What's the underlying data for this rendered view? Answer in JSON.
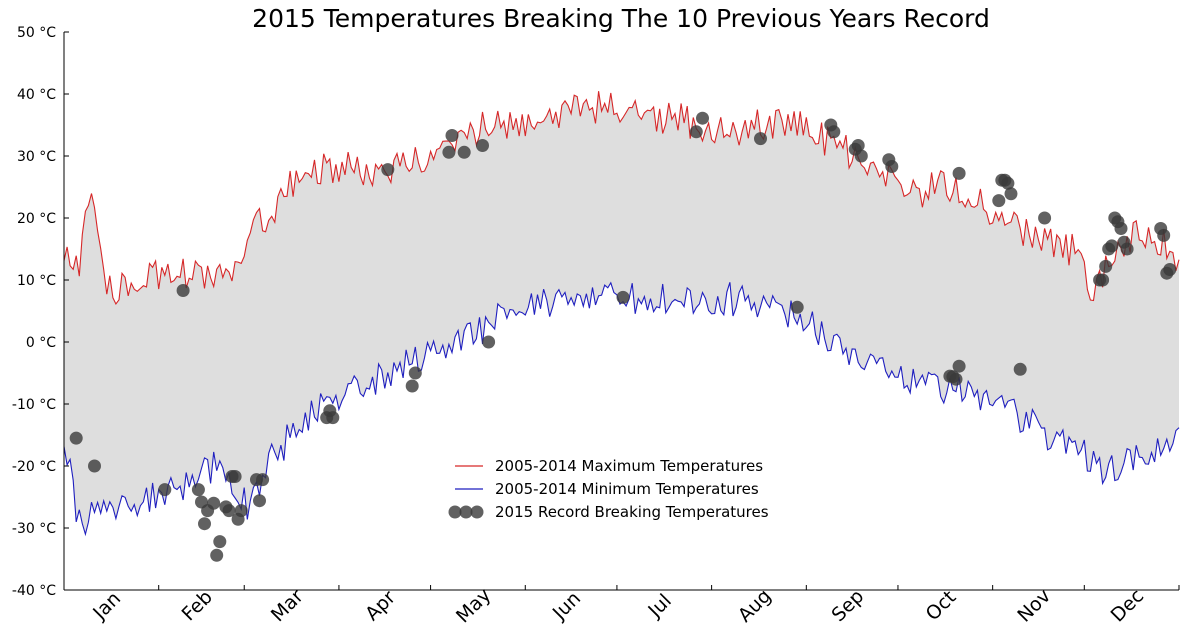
{
  "chart_data": {
    "type": "line",
    "title": "2015 Temperatures Breaking The 10 Previous Years Record",
    "xlabel": "",
    "ylabel": "",
    "xlim": [
      0,
      365
    ],
    "ylim": [
      -40,
      50
    ],
    "y_ticks": [
      {
        "value": -40,
        "label": "-40 °C"
      },
      {
        "value": -30,
        "label": "-30 °C"
      },
      {
        "value": -20,
        "label": "-20 °C"
      },
      {
        "value": -10,
        "label": "-10 °C"
      },
      {
        "value": 0,
        "label": "0 °C"
      },
      {
        "value": 10,
        "label": "10 °C"
      },
      {
        "value": 20,
        "label": "20 °C"
      },
      {
        "value": 30,
        "label": "30 °C"
      },
      {
        "value": 40,
        "label": "40 °C"
      },
      {
        "value": 50,
        "label": "50 °C"
      }
    ],
    "x_month_labels": [
      "Jan",
      "Feb",
      "Mar",
      "Apr",
      "May",
      "Jun",
      "Jul",
      "Aug",
      "Sep",
      "Oct",
      "Nov",
      "Dec"
    ],
    "month_boundaries": [
      0,
      31,
      59,
      90,
      120,
      151,
      181,
      212,
      243,
      273,
      304,
      334,
      365
    ],
    "grid": false,
    "legend_position": "lower-center",
    "fill_between": true,
    "colors": {
      "max_line": "#d62728",
      "min_line": "#1f1fbf",
      "fill": "#dedede",
      "scatter": "#3a3a3a"
    },
    "max_anchors": [
      [
        0,
        15
      ],
      [
        5,
        12
      ],
      [
        8,
        22
      ],
      [
        15,
        8
      ],
      [
        28,
        11
      ],
      [
        40,
        11
      ],
      [
        55,
        11
      ],
      [
        65,
        20
      ],
      [
        80,
        28
      ],
      [
        92,
        28
      ],
      [
        105,
        28
      ],
      [
        115,
        29
      ],
      [
        125,
        32
      ],
      [
        140,
        35
      ],
      [
        155,
        36
      ],
      [
        170,
        38
      ],
      [
        185,
        38
      ],
      [
        200,
        36
      ],
      [
        215,
        34
      ],
      [
        230,
        35
      ],
      [
        240,
        35
      ],
      [
        255,
        31
      ],
      [
        265,
        29
      ],
      [
        275,
        23
      ],
      [
        285,
        25
      ],
      [
        295,
        24
      ],
      [
        305,
        20
      ],
      [
        318,
        17
      ],
      [
        330,
        15
      ],
      [
        337,
        9
      ],
      [
        345,
        15
      ],
      [
        355,
        18
      ],
      [
        365,
        13
      ]
    ],
    "min_anchors": [
      [
        0,
        -17
      ],
      [
        5,
        -29
      ],
      [
        10,
        -27
      ],
      [
        20,
        -26
      ],
      [
        35,
        -24
      ],
      [
        50,
        -20
      ],
      [
        60,
        -26
      ],
      [
        70,
        -17
      ],
      [
        80,
        -12
      ],
      [
        90,
        -9
      ],
      [
        100,
        -6
      ],
      [
        115,
        -3
      ],
      [
        130,
        0
      ],
      [
        145,
        4
      ],
      [
        160,
        6
      ],
      [
        175,
        7
      ],
      [
        190,
        7
      ],
      [
        200,
        7
      ],
      [
        215,
        7
      ],
      [
        230,
        6
      ],
      [
        240,
        4
      ],
      [
        255,
        -1
      ],
      [
        268,
        -3
      ],
      [
        280,
        -6
      ],
      [
        295,
        -8
      ],
      [
        305,
        -10
      ],
      [
        315,
        -13
      ],
      [
        330,
        -17
      ],
      [
        340,
        -21
      ],
      [
        350,
        -19
      ],
      [
        365,
        -15
      ]
    ],
    "series": [
      {
        "name": "2005-2014 Maximum Temperatures",
        "role": "max",
        "style": "line"
      },
      {
        "name": "2005-2014 Minimum Temperatures",
        "role": "min",
        "style": "line"
      },
      {
        "name": "2015 Record Breaking Temperatures",
        "role": "records",
        "style": "scatter",
        "points": [
          [
            4,
            -15.5
          ],
          [
            10,
            -20
          ],
          [
            33,
            -23.8
          ],
          [
            39,
            8.3
          ],
          [
            44,
            -23.8
          ],
          [
            45,
            -25.8
          ],
          [
            46,
            -29.3
          ],
          [
            47,
            -27.2
          ],
          [
            49,
            -26
          ],
          [
            50,
            -34.4
          ],
          [
            51,
            -32.2
          ],
          [
            53,
            -26.6
          ],
          [
            54,
            -27.2
          ],
          [
            55,
            -21.7
          ],
          [
            56,
            -21.7
          ],
          [
            57,
            -28.6
          ],
          [
            58,
            -27.2
          ],
          [
            63,
            -22.2
          ],
          [
            64,
            -25.6
          ],
          [
            65,
            -22.2
          ],
          [
            86,
            -12.2
          ],
          [
            87,
            -11.1
          ],
          [
            88,
            -12.2
          ],
          [
            106,
            27.8
          ],
          [
            114,
            -7.1
          ],
          [
            115,
            -5
          ],
          [
            126,
            30.6
          ],
          [
            127,
            33.3
          ],
          [
            131,
            30.6
          ],
          [
            137,
            31.7
          ],
          [
            139,
            0
          ],
          [
            183,
            7.2
          ],
          [
            207,
            33.9
          ],
          [
            209,
            36.1
          ],
          [
            228,
            32.8
          ],
          [
            240,
            5.6
          ],
          [
            251,
            35
          ],
          [
            252,
            33.9
          ],
          [
            259,
            31.1
          ],
          [
            260,
            31.7
          ],
          [
            261,
            30
          ],
          [
            270,
            29.4
          ],
          [
            271,
            28.3
          ],
          [
            290,
            -5.5
          ],
          [
            291,
            -5.6
          ],
          [
            292,
            -6
          ],
          [
            293,
            -3.9
          ],
          [
            293,
            27.2
          ],
          [
            306,
            22.8
          ],
          [
            307,
            26.1
          ],
          [
            308,
            26.1
          ],
          [
            309,
            25.6
          ],
          [
            310,
            23.9
          ],
          [
            313,
            -4.4
          ],
          [
            321,
            20
          ],
          [
            339,
            10
          ],
          [
            340,
            10
          ],
          [
            341,
            12.2
          ],
          [
            342,
            15
          ],
          [
            343,
            15.5
          ],
          [
            344,
            20
          ],
          [
            345,
            19.4
          ],
          [
            346,
            18.3
          ],
          [
            347,
            16.1
          ],
          [
            348,
            15
          ],
          [
            359,
            18.3
          ],
          [
            360,
            17.2
          ],
          [
            361,
            11.1
          ],
          [
            362,
            11.7
          ]
        ]
      }
    ]
  }
}
